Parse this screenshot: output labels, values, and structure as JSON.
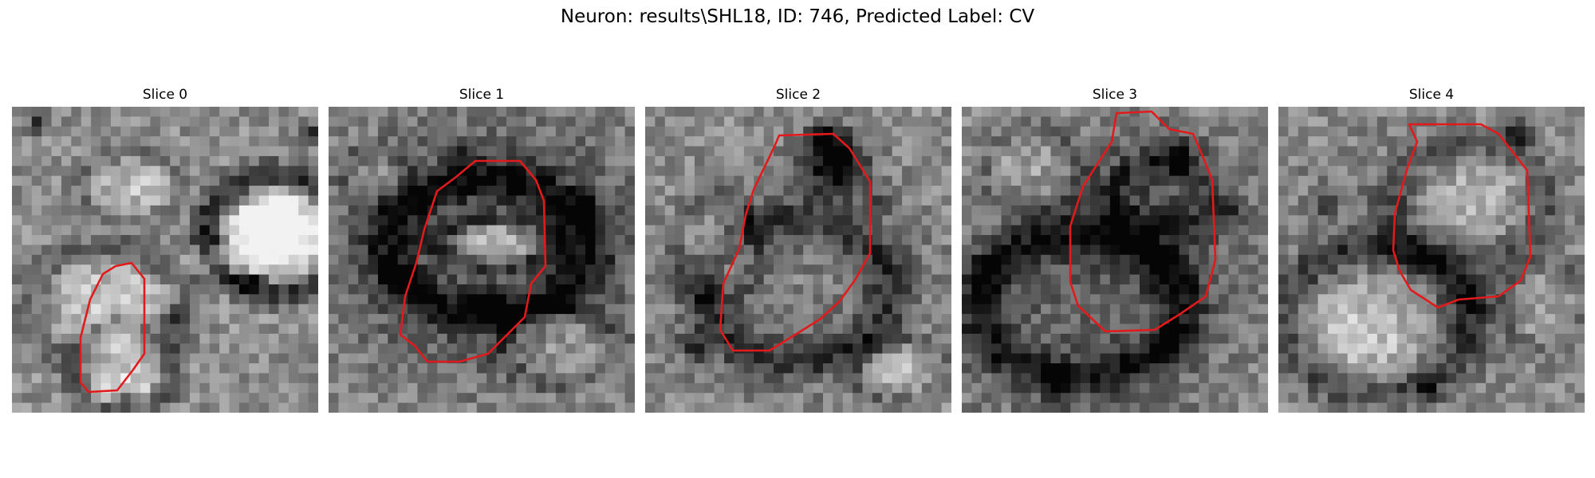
{
  "figure": {
    "title": "Neuron: results\\SHL18, ID: 746, Predicted Label: CV",
    "contour_color": "#e31a1c"
  },
  "panels": [
    {
      "title": "Slice 0"
    },
    {
      "title": "Slice 1"
    },
    {
      "title": "Slice 2"
    },
    {
      "title": "Slice 3"
    },
    {
      "title": "Slice 4"
    }
  ]
}
